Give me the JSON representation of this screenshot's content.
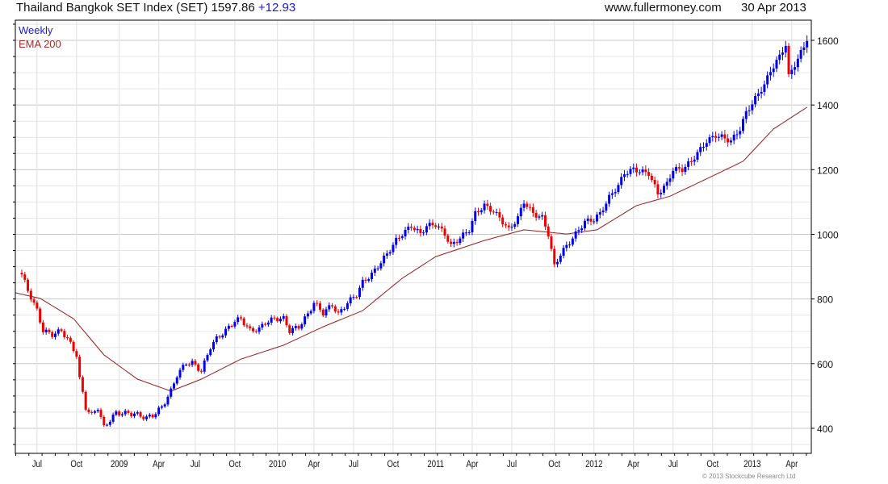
{
  "header": {
    "title": "Thailand Bangkok SET Index (SET) 1597.86",
    "change": "+12.93",
    "site": "www.fullermoney.com",
    "date": "30 Apr 2013"
  },
  "footer": {
    "copyright": "© 2013 Stockcube Research Ltd"
  },
  "colors": {
    "up": "#0000ee",
    "down": "#ee0000",
    "ema": "#9b1c1c",
    "change": "#1a1acc"
  },
  "chart_data": {
    "type": "candlestick",
    "legend": [
      "Weekly",
      "EMA 200"
    ],
    "legend_placement": "top-left",
    "x_unit": "weeks since mid-June 2008",
    "x_ticks": [
      {
        "label": "Jul",
        "week": 5
      },
      {
        "label": "Oct",
        "week": 18
      },
      {
        "label": "2009",
        "week": 32
      },
      {
        "label": "Apr",
        "week": 45
      },
      {
        "label": "Jul",
        "week": 57
      },
      {
        "label": "Oct",
        "week": 70
      },
      {
        "label": "2010",
        "week": 84
      },
      {
        "label": "Apr",
        "week": 96
      },
      {
        "label": "Jul",
        "week": 109
      },
      {
        "label": "Oct",
        "week": 122
      },
      {
        "label": "2011",
        "week": 136
      },
      {
        "label": "Apr",
        "week": 148
      },
      {
        "label": "Jul",
        "week": 161
      },
      {
        "label": "Oct",
        "week": 175
      },
      {
        "label": "2012",
        "week": 188
      },
      {
        "label": "Apr",
        "week": 201
      },
      {
        "label": "Jul",
        "week": 214
      },
      {
        "label": "Oct",
        "week": 227
      },
      {
        "label": "2013",
        "week": 240
      },
      {
        "label": "Apr",
        "week": 253
      }
    ],
    "y_ticks": [
      400,
      600,
      800,
      1000,
      1200,
      1400,
      1600
    ],
    "ylim": [
      330,
      1665
    ],
    "weekly_close_anchors": [
      [
        0,
        876
      ],
      [
        2,
        827
      ],
      [
        5,
        764
      ],
      [
        7,
        702
      ],
      [
        10,
        690
      ],
      [
        13,
        702
      ],
      [
        15,
        677
      ],
      [
        18,
        627
      ],
      [
        19,
        552
      ],
      [
        21,
        465
      ],
      [
        23,
        440
      ],
      [
        25,
        465
      ],
      [
        27,
        402
      ],
      [
        29,
        427
      ],
      [
        31,
        447
      ],
      [
        33,
        447
      ],
      [
        37,
        445
      ],
      [
        41,
        432
      ],
      [
        43,
        440
      ],
      [
        46,
        465
      ],
      [
        49,
        515
      ],
      [
        51,
        565
      ],
      [
        54,
        602
      ],
      [
        56,
        602
      ],
      [
        59,
        577
      ],
      [
        62,
        652
      ],
      [
        64,
        677
      ],
      [
        67,
        702
      ],
      [
        70,
        732
      ],
      [
        72,
        739
      ],
      [
        75,
        702
      ],
      [
        78,
        707
      ],
      [
        80,
        727
      ],
      [
        83,
        739
      ],
      [
        86,
        739
      ],
      [
        88,
        702
      ],
      [
        91,
        714
      ],
      [
        94,
        752
      ],
      [
        96,
        789
      ],
      [
        99,
        757
      ],
      [
        102,
        782
      ],
      [
        104,
        752
      ],
      [
        107,
        789
      ],
      [
        110,
        814
      ],
      [
        112,
        852
      ],
      [
        115,
        876
      ],
      [
        118,
        914
      ],
      [
        120,
        939
      ],
      [
        123,
        981
      ],
      [
        125,
        1001
      ],
      [
        128,
        1026
      ],
      [
        131,
        1001
      ],
      [
        133,
        1026
      ],
      [
        136,
        1031
      ],
      [
        139,
        1001
      ],
      [
        141,
        964
      ],
      [
        144,
        989
      ],
      [
        147,
        1014
      ],
      [
        149,
        1064
      ],
      [
        152,
        1089
      ],
      [
        155,
        1071
      ],
      [
        157,
        1051
      ],
      [
        160,
        1014
      ],
      [
        163,
        1051
      ],
      [
        165,
        1101
      ],
      [
        168,
        1064
      ],
      [
        171,
        1051
      ],
      [
        173,
        1001
      ],
      [
        175,
        901
      ],
      [
        177,
        939
      ],
      [
        180,
        976
      ],
      [
        182,
        1001
      ],
      [
        185,
        1039
      ],
      [
        188,
        1046
      ],
      [
        190,
        1064
      ],
      [
        193,
        1114
      ],
      [
        196,
        1151
      ],
      [
        198,
        1189
      ],
      [
        201,
        1201
      ],
      [
        204,
        1193
      ],
      [
        206,
        1189
      ],
      [
        209,
        1126
      ],
      [
        212,
        1156
      ],
      [
        214,
        1201
      ],
      [
        217,
        1201
      ],
      [
        220,
        1226
      ],
      [
        222,
        1251
      ],
      [
        225,
        1288
      ],
      [
        228,
        1306
      ],
      [
        230,
        1301
      ],
      [
        233,
        1288
      ],
      [
        236,
        1326
      ],
      [
        238,
        1376
      ],
      [
        241,
        1420
      ],
      [
        244,
        1463
      ],
      [
        246,
        1505
      ],
      [
        249,
        1550
      ],
      [
        251,
        1587
      ],
      [
        252,
        1488
      ],
      [
        254,
        1525
      ],
      [
        256,
        1562
      ],
      [
        258,
        1597.86
      ]
    ],
    "ema200_anchors": [
      [
        -2,
        819
      ],
      [
        6,
        802
      ],
      [
        17,
        739
      ],
      [
        27,
        627
      ],
      [
        38,
        552
      ],
      [
        49,
        515
      ],
      [
        59,
        552
      ],
      [
        72,
        614
      ],
      [
        86,
        657
      ],
      [
        99,
        714
      ],
      [
        112,
        764
      ],
      [
        125,
        864
      ],
      [
        136,
        931
      ],
      [
        152,
        981
      ],
      [
        165,
        1014
      ],
      [
        179,
        1001
      ],
      [
        189,
        1014
      ],
      [
        202,
        1089
      ],
      [
        213,
        1118
      ],
      [
        226,
        1176
      ],
      [
        237,
        1226
      ],
      [
        247,
        1326
      ],
      [
        258,
        1393
      ]
    ]
  }
}
